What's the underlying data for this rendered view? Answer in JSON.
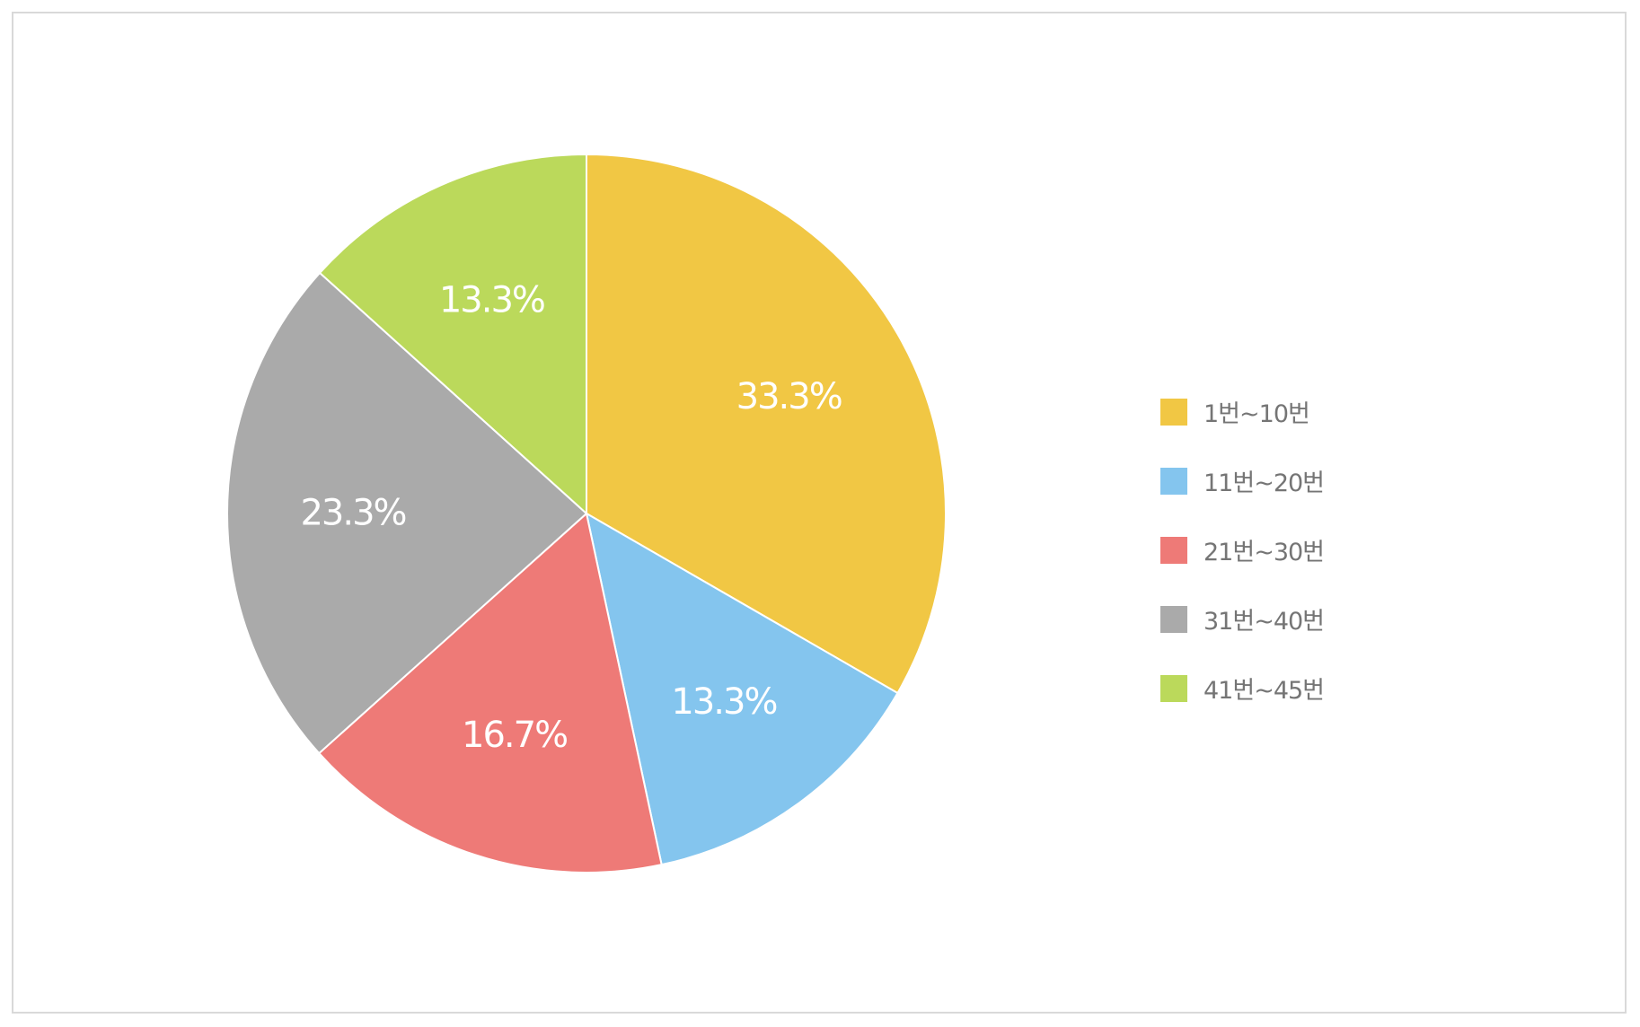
{
  "chart_data": {
    "type": "pie",
    "categories": [
      "1번~10번",
      "11번~20번",
      "21번~30번",
      "31번~40번",
      "41번~45번"
    ],
    "values": [
      33.3,
      13.3,
      16.7,
      23.3,
      13.3
    ],
    "labels": [
      "33.3%",
      "13.3%",
      "16.7%",
      "23.3%",
      "13.3%"
    ],
    "colors": [
      "#F1C744",
      "#84C5EE",
      "#EE7A77",
      "#AAAAAA",
      "#BBD95B"
    ],
    "start": "12 o'clock",
    "direction": "clockwise",
    "legend_position": "right"
  }
}
